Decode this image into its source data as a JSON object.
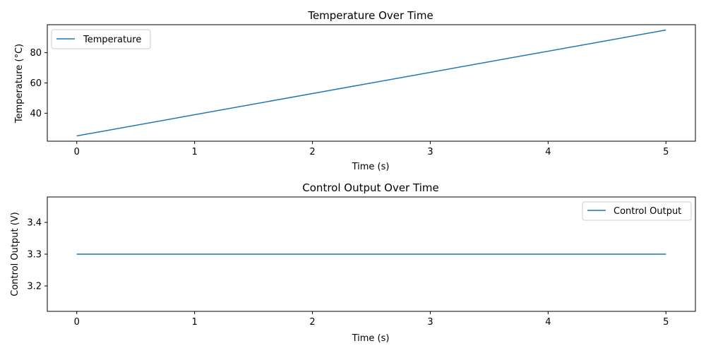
{
  "chart_data": [
    {
      "type": "line",
      "title": "Temperature Over Time",
      "xlabel": "Time (s)",
      "ylabel": "Temperature (°C)",
      "xlim": [
        -0.25,
        5.25
      ],
      "ylim": [
        21.5,
        98.5
      ],
      "xticks": [
        0,
        1,
        2,
        3,
        4,
        5
      ],
      "yticks": [
        40,
        60,
        80
      ],
      "grid": false,
      "legend_position": "top-left",
      "color": "#1f77b4",
      "series": [
        {
          "name": "Temperature",
          "x": [
            0,
            5
          ],
          "y": [
            25,
            95
          ]
        }
      ]
    },
    {
      "type": "line",
      "title": "Control Output Over Time",
      "xlabel": "Time (s)",
      "ylabel": "Control Output (V)",
      "xlim": [
        -0.25,
        5.25
      ],
      "ylim": [
        3.12,
        3.48
      ],
      "xticks": [
        0,
        1,
        2,
        3,
        4,
        5
      ],
      "yticks": [
        3.2,
        3.3,
        3.4
      ],
      "grid": false,
      "legend_position": "top-right",
      "color": "#1f77b4",
      "series": [
        {
          "name": "Control Output",
          "x": [
            0,
            5
          ],
          "y": [
            3.3,
            3.3
          ]
        }
      ]
    }
  ]
}
